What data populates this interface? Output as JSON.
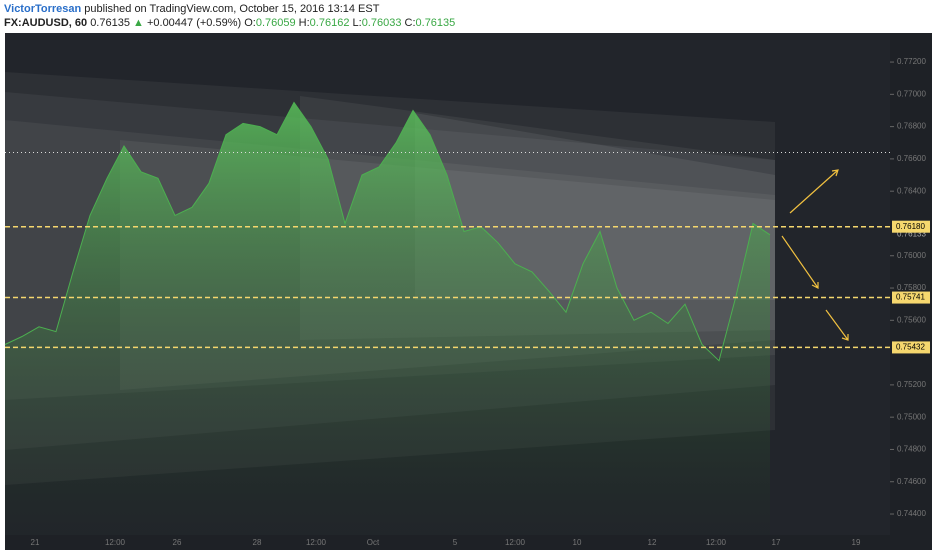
{
  "header": {
    "author": "VictorTorresan",
    "published": " published on TradingView.com, October 15, 2016 13:14 EST",
    "symbol": "FX:AUDUSD, 60",
    "last": "0.76135",
    "arrow": "▲",
    "change": "+0.00447 (+0.59%)",
    "open_label": "O:",
    "open": "0.76059",
    "high_label": "H:",
    "high": "0.76162",
    "low_label": "L:",
    "low": "0.76033",
    "close_label": "C:",
    "close": "0.76135"
  },
  "chart_data": {
    "type": "area",
    "color": "#4caf50",
    "values": [
      0.7545,
      0.755,
      0.7556,
      0.7553,
      0.759,
      0.7625,
      0.7648,
      0.7668,
      0.7652,
      0.7648,
      0.7625,
      0.763,
      0.7645,
      0.7675,
      0.7682,
      0.768,
      0.7675,
      0.7695,
      0.768,
      0.766,
      0.762,
      0.765,
      0.7655,
      0.767,
      0.769,
      0.7675,
      0.765,
      0.7615,
      0.7618,
      0.7608,
      0.7595,
      0.759,
      0.7578,
      0.7565,
      0.7595,
      0.7615,
      0.758,
      0.756,
      0.7565,
      0.7558,
      0.757,
      0.7545,
      0.7535,
      0.7575,
      0.762,
      0.7613
    ],
    "ylim": [
      0.7427,
      0.7738
    ],
    "yticks": [
      {
        "value": 0.772,
        "label": "0.77200"
      },
      {
        "value": 0.77,
        "label": "0.77000"
      },
      {
        "value": 0.768,
        "label": "0.76800"
      },
      {
        "value": 0.766,
        "label": "0.76600"
      },
      {
        "value": 0.764,
        "label": "0.76400"
      },
      {
        "value": 0.76,
        "label": "0.76000"
      },
      {
        "value": 0.758,
        "label": "0.75800"
      },
      {
        "value": 0.756,
        "label": "0.75600"
      },
      {
        "value": 0.752,
        "label": "0.75200"
      },
      {
        "value": 0.75,
        "label": "0.75000"
      },
      {
        "value": 0.748,
        "label": "0.74800"
      },
      {
        "value": 0.746,
        "label": "0.74600"
      },
      {
        "value": 0.744,
        "label": "0.74400"
      }
    ],
    "time_labels": [
      "21",
      "12:00",
      "26",
      "28",
      "12:00",
      "Oct",
      "5",
      "12:00",
      "10",
      "12",
      "12:00",
      "17",
      "19"
    ],
    "current_price": {
      "value": 0.76133,
      "label": "0.76133"
    },
    "levels": [
      {
        "value": 0.7618,
        "label": "0.76180"
      },
      {
        "value": 0.75741,
        "label": "0.75741"
      },
      {
        "value": 0.75432,
        "label": "0.75432"
      }
    ],
    "dotted_level": 0.7664
  }
}
